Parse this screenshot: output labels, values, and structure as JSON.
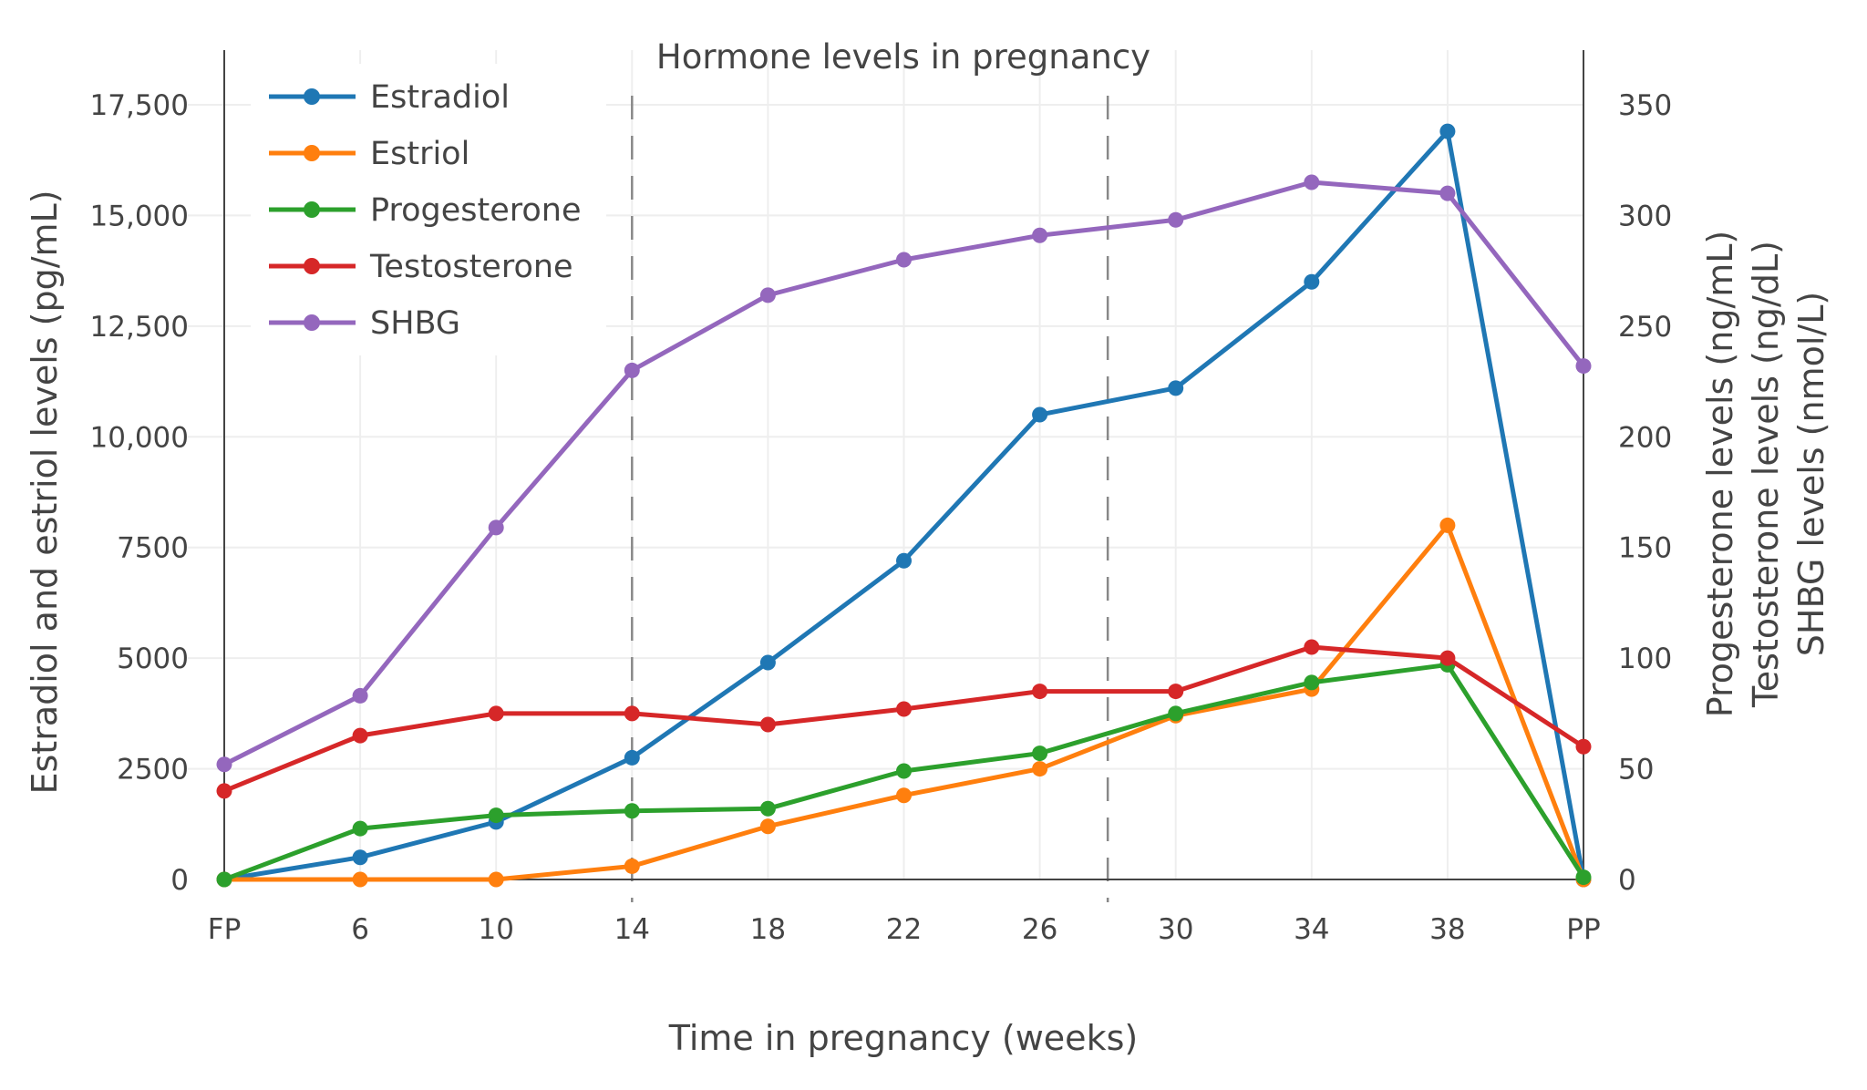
{
  "chart_data": {
    "type": "line",
    "title": "Hormone levels in pregnancy",
    "xlabel": "Time in pregnancy (weeks)",
    "ylabel_left": "Estradiol and estriol levels (pg/mL)",
    "ylabels_right": [
      "Progesterone levels (ng/mL)",
      "Testosterone levels (ng/dL)",
      "SHBG levels (nmol/L)"
    ],
    "categories": [
      "FP",
      "6",
      "10",
      "14",
      "18",
      "22",
      "26",
      "30",
      "34",
      "38",
      "PP"
    ],
    "y_left_lim": [
      0,
      17500
    ],
    "y_left_ticks": [
      "0",
      "2500",
      "5000",
      "7500",
      "10,000",
      "12,500",
      "15,000",
      "17,500"
    ],
    "y_left_tick_values": [
      0,
      2500,
      5000,
      7500,
      10000,
      12500,
      15000,
      17500
    ],
    "y_right_lim": [
      0,
      350
    ],
    "y_right_ticks": [
      "0",
      "50",
      "100",
      "150",
      "200",
      "250",
      "300",
      "350"
    ],
    "y_right_tick_values": [
      0,
      50,
      100,
      150,
      200,
      250,
      300,
      350
    ],
    "trimester_markers_weeks": [
      14,
      28
    ],
    "grid": true,
    "legend_position": "top-left",
    "series": [
      {
        "name": "Estradiol",
        "axis": "left",
        "color": "#1f77b4",
        "values": [
          0,
          500,
          1300,
          2750,
          4900,
          7200,
          10500,
          11100,
          13500,
          16900,
          0
        ]
      },
      {
        "name": "Estriol",
        "axis": "left",
        "color": "#ff7f0e",
        "values": [
          0,
          0,
          0,
          300,
          1200,
          1900,
          2500,
          3700,
          4300,
          8000,
          0
        ]
      },
      {
        "name": "Progesterone",
        "axis": "right",
        "color": "#2ca02c",
        "values": [
          0,
          23,
          29,
          31,
          32,
          49,
          57,
          75,
          89,
          97,
          1
        ]
      },
      {
        "name": "Testosterone",
        "axis": "right",
        "color": "#d62728",
        "values": [
          40,
          65,
          75,
          75,
          70,
          77,
          85,
          85,
          105,
          100,
          60
        ]
      },
      {
        "name": "SHBG",
        "axis": "right",
        "color": "#9467bd",
        "values": [
          52,
          83,
          159,
          230,
          264,
          280,
          291,
          298,
          315,
          310,
          232
        ]
      }
    ]
  }
}
